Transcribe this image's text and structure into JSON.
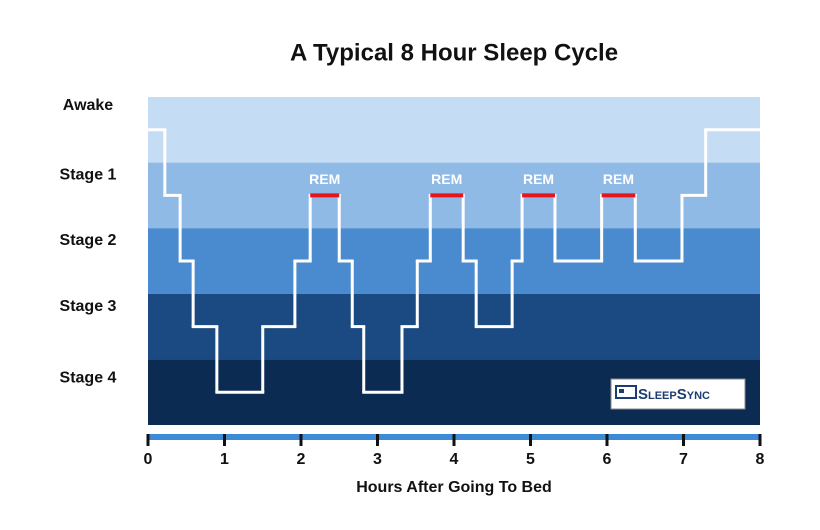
{
  "chart_data": {
    "type": "step",
    "title": "A Typical 8 Hour Sleep Cycle",
    "xlabel": "Hours After Going To Bed",
    "xlim": [
      0,
      8
    ],
    "xticks": [
      0,
      1,
      2,
      3,
      4,
      5,
      6,
      7,
      8
    ],
    "ylim": [
      4.5,
      -0.5
    ],
    "yticks": [
      {
        "value": 0,
        "label": "Awake"
      },
      {
        "value": 1,
        "label": "Stage 1"
      },
      {
        "value": 2,
        "label": "Stage 2"
      },
      {
        "value": 3,
        "label": "Stage 3"
      },
      {
        "value": 4,
        "label": "Stage 4"
      }
    ],
    "band_colors": [
      "#c4ddf4",
      "#8fbae6",
      "#4a8bd0",
      "#1b4a82",
      "#0c2b53"
    ],
    "color": "#ffffff",
    "x": [
      0,
      0.22,
      0.42,
      0.59,
      0.9,
      1.5,
      1.92,
      2.12,
      2.5,
      2.67,
      2.82,
      3.32,
      3.52,
      3.69,
      4.12,
      4.29,
      4.76,
      4.89,
      5.32,
      5.93,
      6.37,
      6.98,
      7.29
    ],
    "values": [
      0,
      1,
      2,
      3,
      4,
      3,
      2,
      1,
      2,
      3,
      4,
      3,
      2,
      1,
      2,
      3,
      2,
      1,
      2,
      1,
      2,
      1,
      0
    ],
    "annotations": [
      {
        "text": "REM",
        "x": [
          2.12,
          2.5
        ],
        "y": 1
      },
      {
        "text": "REM",
        "x": [
          3.69,
          4.12
        ],
        "y": 1
      },
      {
        "text": "REM",
        "x": [
          4.89,
          5.32
        ],
        "y": 1
      },
      {
        "text": "REM",
        "x": [
          5.93,
          6.37
        ],
        "y": 1
      }
    ],
    "annotation_color": "#e8141c",
    "logo": "SleepSync"
  }
}
